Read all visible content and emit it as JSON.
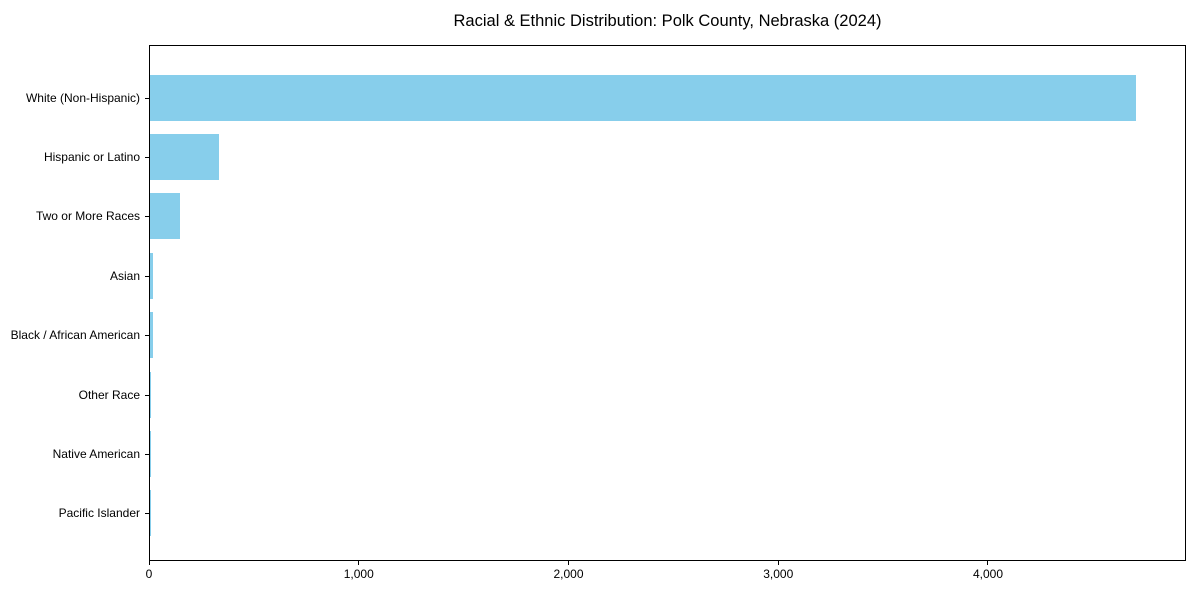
{
  "chart_data": {
    "type": "bar",
    "orientation": "horizontal",
    "title": "Racial & Ethnic Distribution: Polk County, Nebraska (2024)",
    "categories": [
      "White (Non-Hispanic)",
      "Hispanic or Latino",
      "Two or More Races",
      "Asian",
      "Black / African American",
      "Other Race",
      "Native American",
      "Pacific Islander"
    ],
    "values": [
      4700,
      330,
      145,
      15,
      14,
      5,
      2,
      1
    ],
    "bar_color": "#87CEEB",
    "xlabel": "",
    "ylabel": "",
    "xlim": [
      0,
      4944
    ],
    "x_ticks": [
      0,
      1000,
      2000,
      3000,
      4000
    ],
    "x_tick_labels": [
      "0",
      "1,000",
      "2,000",
      "3,000",
      "4,000"
    ],
    "grid": false,
    "legend": null,
    "background_color": "#ffffff",
    "axis_color": "#000000"
  }
}
